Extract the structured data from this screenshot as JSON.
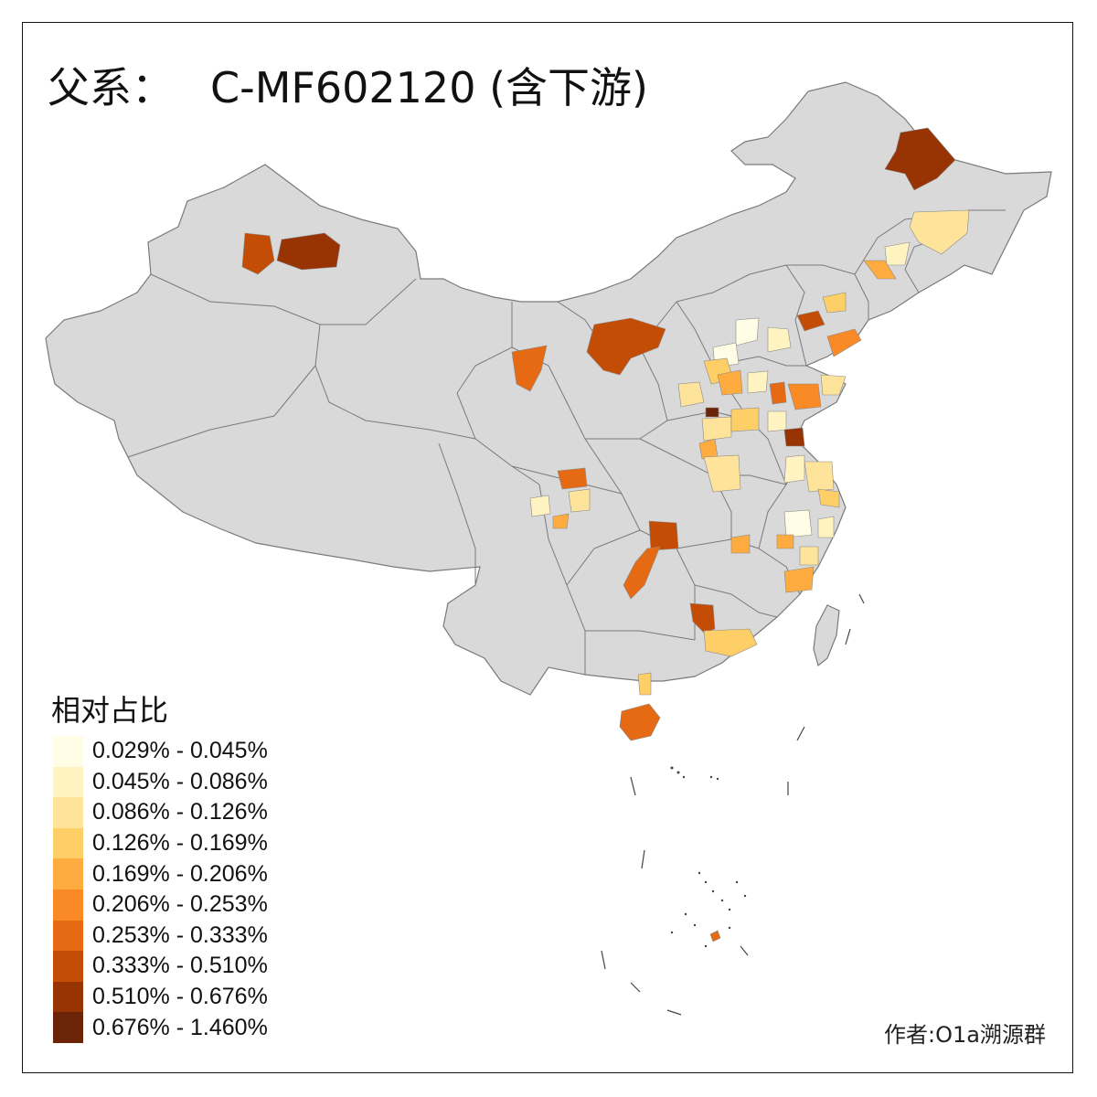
{
  "title": {
    "prefix": "父系：",
    "code": "C-MF602120 (含下游)"
  },
  "legend": {
    "title": "相对占比",
    "bins": [
      {
        "label": "0.029% - 0.045%",
        "color": "#fffde6"
      },
      {
        "label": "0.045% - 0.086%",
        "color": "#fff3c2"
      },
      {
        "label": "0.086% - 0.126%",
        "color": "#fee49a"
      },
      {
        "label": "0.126% - 0.169%",
        "color": "#fece67"
      },
      {
        "label": "0.169% - 0.206%",
        "color": "#feac3f"
      },
      {
        "label": "0.206% - 0.253%",
        "color": "#f98a25"
      },
      {
        "label": "0.253% - 0.333%",
        "color": "#e56a13"
      },
      {
        "label": "0.333% - 0.510%",
        "color": "#c44d05"
      },
      {
        "label": "0.510% - 0.676%",
        "color": "#983404"
      },
      {
        "label": "0.676% - 1.460%",
        "color": "#6b2408"
      }
    ]
  },
  "credit": "作者:O1a溯源群",
  "colors": {
    "land": "#d9d9d9",
    "border": "#7a7a7a",
    "frame": "#111111"
  }
}
